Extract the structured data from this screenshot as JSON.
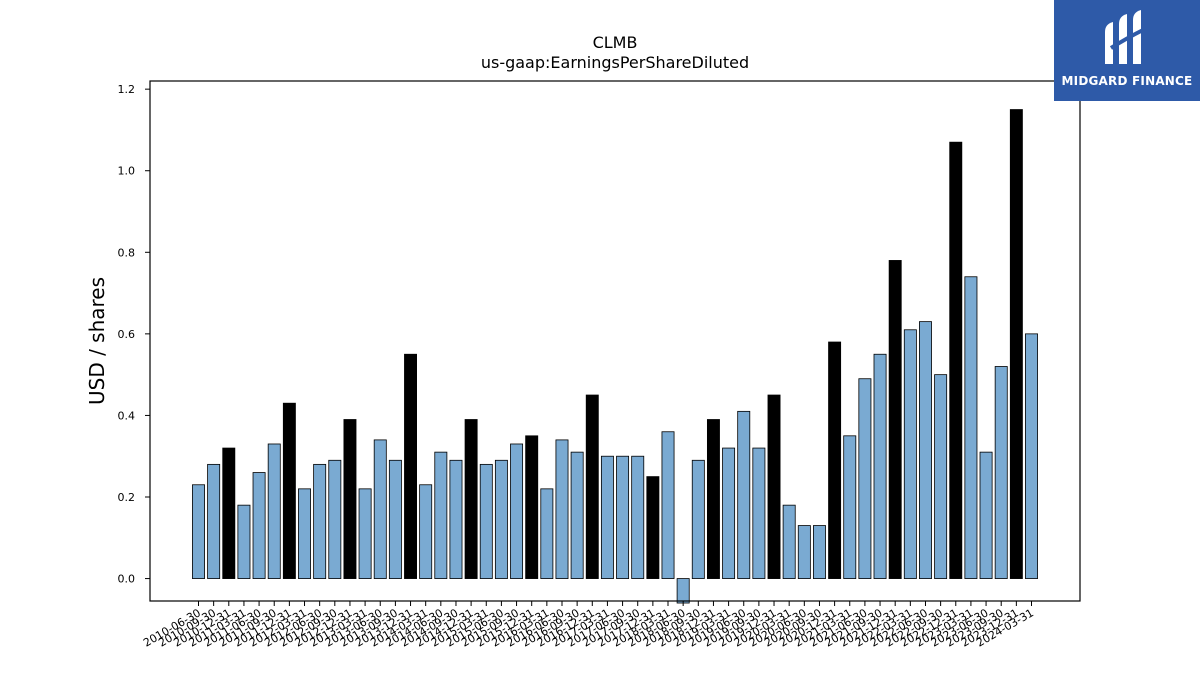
{
  "chart_data": {
    "type": "bar",
    "title": "CLMB",
    "subtitle": "us-gaap:EarningsPerShareDiluted",
    "xlabel": "",
    "ylabel": "USD / shares",
    "ylim": [
      -0.055,
      1.22
    ],
    "yticks": [
      0.0,
      0.2,
      0.4,
      0.6,
      0.8,
      1.0,
      1.2
    ],
    "grid": false,
    "colors": {
      "quarter": "#7aaad2",
      "fiscal_year": "#000000"
    },
    "categories": [
      "2010-06-30",
      "2010-09-30",
      "2010-12-31",
      "2011-03-31",
      "2011-06-30",
      "2011-09-30",
      "2011-12-31",
      "2012-03-31",
      "2012-06-30",
      "2012-09-30",
      "2012-12-31",
      "2013-03-31",
      "2013-06-30",
      "2013-09-30",
      "2013-12-31",
      "2014-03-31",
      "2014-06-30",
      "2014-09-30",
      "2014-12-31",
      "2015-03-31",
      "2015-06-30",
      "2015-09-30",
      "2015-12-31",
      "2016-03-31",
      "2016-06-30",
      "2016-09-30",
      "2016-12-31",
      "2017-03-31",
      "2017-06-30",
      "2017-09-30",
      "2017-12-31",
      "2018-03-31",
      "2018-06-30",
      "2018-09-30",
      "2018-12-31",
      "2019-03-31",
      "2019-06-30",
      "2019-09-30",
      "2019-12-31",
      "2020-03-31",
      "2020-06-30",
      "2020-09-30",
      "2020-12-31",
      "2021-03-31",
      "2021-06-30",
      "2021-09-30",
      "2021-12-31",
      "2022-03-31",
      "2022-06-30",
      "2022-09-30",
      "2022-12-31",
      "2023-03-31",
      "2023-06-30",
      "2023-09-30",
      "2023-12-31",
      "2024-03-31"
    ],
    "values": [
      0.23,
      0.28,
      0.32,
      0.18,
      0.26,
      0.33,
      0.43,
      0.22,
      0.28,
      0.29,
      0.39,
      0.22,
      0.34,
      0.29,
      0.55,
      0.23,
      0.31,
      0.29,
      0.39,
      0.28,
      0.29,
      0.33,
      0.35,
      0.22,
      0.34,
      0.31,
      0.45,
      0.3,
      0.3,
      0.3,
      0.25,
      0.36,
      -0.06,
      0.29,
      0.39,
      0.32,
      0.41,
      0.32,
      0.45,
      0.18,
      0.13,
      0.13,
      0.58,
      0.35,
      0.49,
      0.55,
      0.78,
      0.61,
      0.63,
      0.5,
      1.07,
      0.74,
      0.31,
      0.52,
      1.15,
      0.6
    ],
    "fiscal_year_flags": [
      0,
      0,
      1,
      0,
      0,
      0,
      1,
      0,
      0,
      0,
      1,
      0,
      0,
      0,
      1,
      0,
      0,
      0,
      1,
      0,
      0,
      0,
      1,
      0,
      0,
      0,
      1,
      0,
      0,
      0,
      1,
      0,
      0,
      0,
      1,
      0,
      0,
      0,
      1,
      0,
      0,
      0,
      1,
      0,
      0,
      0,
      1,
      0,
      0,
      0,
      1,
      0,
      0,
      0,
      1,
      0
    ]
  },
  "logo": {
    "text": "MIDGARD FINANCE",
    "icon": "midgard-logo-icon"
  }
}
